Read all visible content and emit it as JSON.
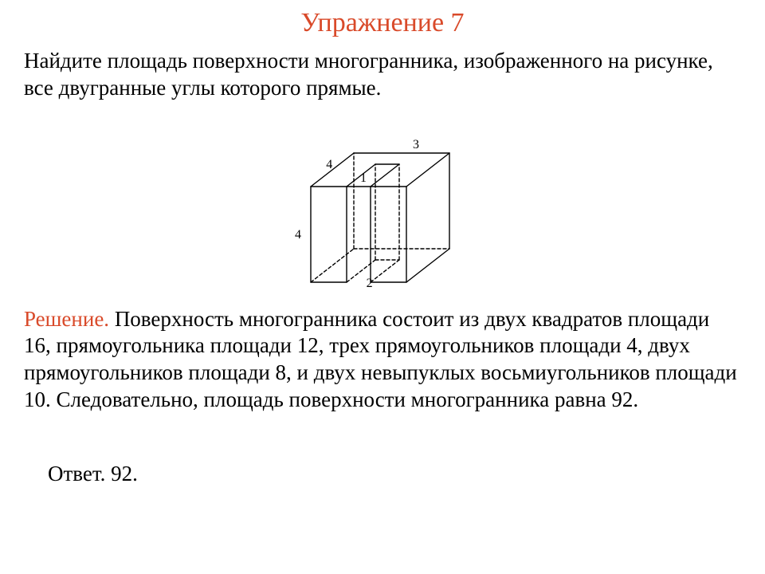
{
  "title": "Упражнение 7",
  "problem": "Найдите площадь поверхности многогранника, изображенного на рисунке, все двугранные углы которого прямые.",
  "figure": {
    "labels": {
      "top_right": "3",
      "top_left": "4",
      "top_notch": "1",
      "left_height": "4",
      "notch_depth": "2"
    },
    "stroke": "#000000",
    "dash": "4,3",
    "label_fontsize": 16
  },
  "solution_label": "Решение.",
  "solution_text": " Поверхность многогранника состоит из двух квадратов площади 16, прямоугольника площади 12, трех прямоугольников площади 4, двух прямоугольников площади 8, и двух невыпуклых восьмиугольников площади 10. Следовательно, площадь поверхности многогранника равна 92.",
  "answer_label": "Ответ.",
  "answer_value": " 92."
}
